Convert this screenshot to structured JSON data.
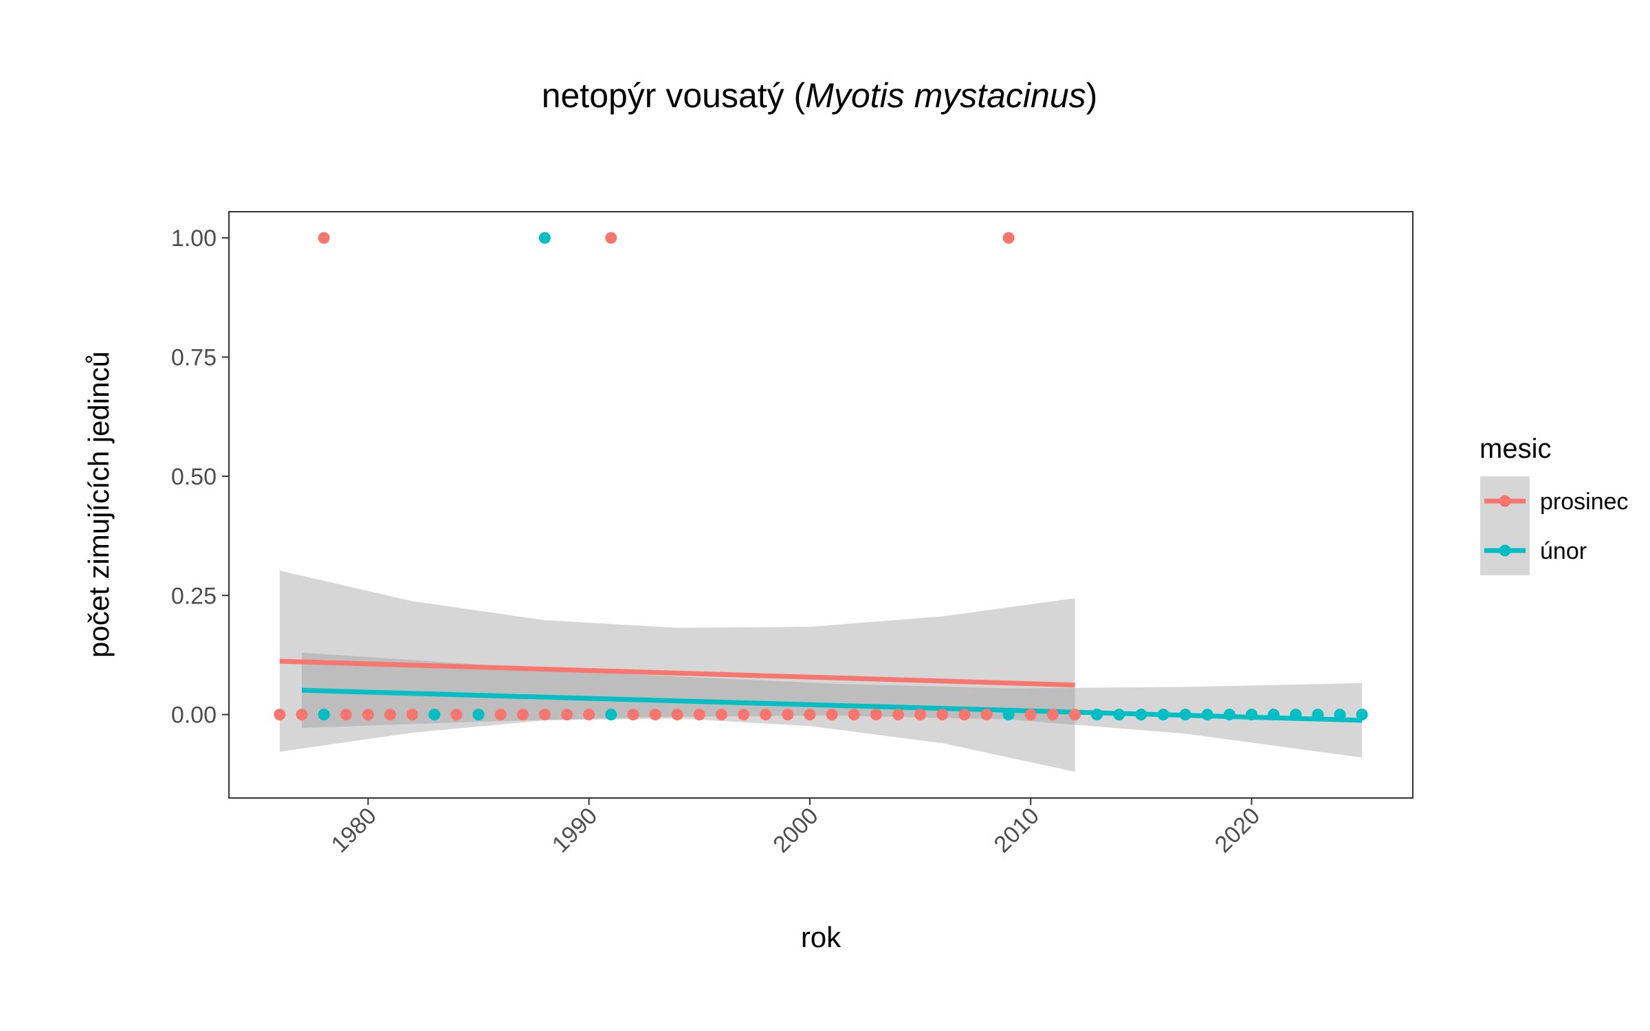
{
  "chart_data": {
    "type": "scatter",
    "title": {
      "prefix": "netopýr vousatý (",
      "italic": "Myotis mystacinus",
      "suffix": ")"
    },
    "xlabel": "rok",
    "ylabel": "počet zimujících jedinců",
    "xlim": [
      1973.7,
      2027.3
    ],
    "ylim": [
      -0.175,
      1.055
    ],
    "xticks": [
      1980,
      1990,
      2000,
      2010,
      2020
    ],
    "yticks": [
      0.0,
      0.25,
      0.5,
      0.75,
      1.0
    ],
    "ytick_labels": [
      "0.00",
      "0.25",
      "0.50",
      "0.75",
      "1.00"
    ],
    "grid": false,
    "legend": {
      "title": "mesic",
      "position": "right",
      "entries": [
        "prosinec",
        "únor"
      ]
    },
    "series": [
      {
        "name": "prosinec",
        "color": "#F8766D",
        "points": {
          "x": [
            1976,
            1977,
            1978,
            1979,
            1980,
            1981,
            1982,
            1983,
            1984,
            1985,
            1986,
            1987,
            1988,
            1989,
            1990,
            1991,
            1992,
            1993,
            1994,
            1995,
            1996,
            1997,
            1998,
            1999,
            2000,
            2001,
            2002,
            2003,
            2004,
            2005,
            2006,
            2007,
            2008,
            2009,
            2010,
            2011,
            2012
          ],
          "y": [
            0,
            0,
            1,
            0,
            0,
            0,
            0,
            0,
            0,
            0,
            0,
            0,
            0,
            0,
            0,
            1,
            0,
            0,
            0,
            0,
            0,
            0,
            0,
            0,
            0,
            0,
            0,
            0,
            0,
            0,
            0,
            0,
            0,
            1,
            0,
            0,
            0
          ]
        },
        "trend": {
          "x": [
            1976,
            2012
          ],
          "y": [
            0.112,
            0.062
          ]
        },
        "ci": {
          "x": [
            1976,
            1982,
            1988,
            1994,
            2000,
            2006,
            2012
          ],
          "lower": [
            -0.078,
            -0.038,
            -0.012,
            -0.008,
            -0.024,
            -0.06,
            -0.12
          ],
          "upper": [
            0.302,
            0.238,
            0.198,
            0.182,
            0.184,
            0.206,
            0.244
          ]
        }
      },
      {
        "name": "únor",
        "color": "#00BFC4",
        "points": {
          "x": [
            1978,
            1983,
            1985,
            1988,
            1991,
            2009,
            2013,
            2014,
            2015,
            2016,
            2017,
            2018,
            2019,
            2020,
            2021,
            2022,
            2023,
            2024,
            2025
          ],
          "y": [
            0,
            0,
            0,
            1,
            0,
            0,
            0,
            0,
            0,
            0,
            0,
            0,
            0,
            0,
            0,
            0,
            0,
            0,
            0
          ]
        },
        "trend": {
          "x": [
            1977,
            2025
          ],
          "y": [
            0.051,
            -0.012
          ]
        },
        "ci": {
          "x": [
            1977,
            1985,
            1993,
            2001,
            2009,
            2017,
            2025
          ],
          "lower": [
            -0.028,
            -0.015,
            -0.005,
            -0.002,
            -0.01,
            -0.04,
            -0.09
          ],
          "upper": [
            0.13,
            0.105,
            0.082,
            0.065,
            0.055,
            0.058,
            0.066
          ]
        }
      }
    ]
  }
}
